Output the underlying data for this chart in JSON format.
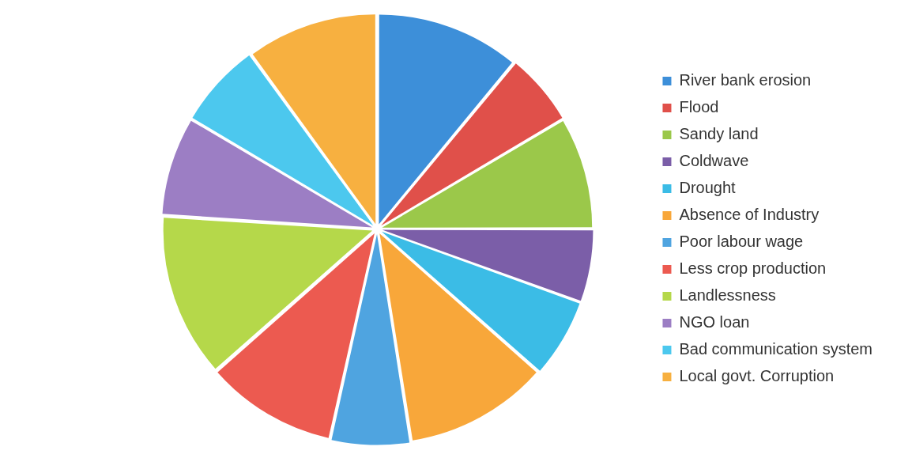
{
  "chart_data": {
    "type": "pie",
    "categories": [
      "River bank erosion",
      "Flood",
      "Sandy land",
      "Coldwave",
      "Drought",
      "Absence of Industry",
      "Poor labour wage",
      "Less crop production",
      "Landlessness",
      "NGO loan",
      "Bad communication system",
      "Local govt. Corruption"
    ],
    "values": [
      11,
      5.5,
      8.5,
      5.5,
      6,
      11,
      6,
      10,
      12.5,
      7.5,
      6.5,
      10
    ],
    "colors": [
      "#3d8fd9",
      "#e0504a",
      "#9bc84a",
      "#7b5ea8",
      "#3bbce6",
      "#f8a73a",
      "#4fa4e0",
      "#ec5a50",
      "#b5d84a",
      "#9c7ec4",
      "#4cc8ee",
      "#f7b040"
    ],
    "legend": "right"
  }
}
